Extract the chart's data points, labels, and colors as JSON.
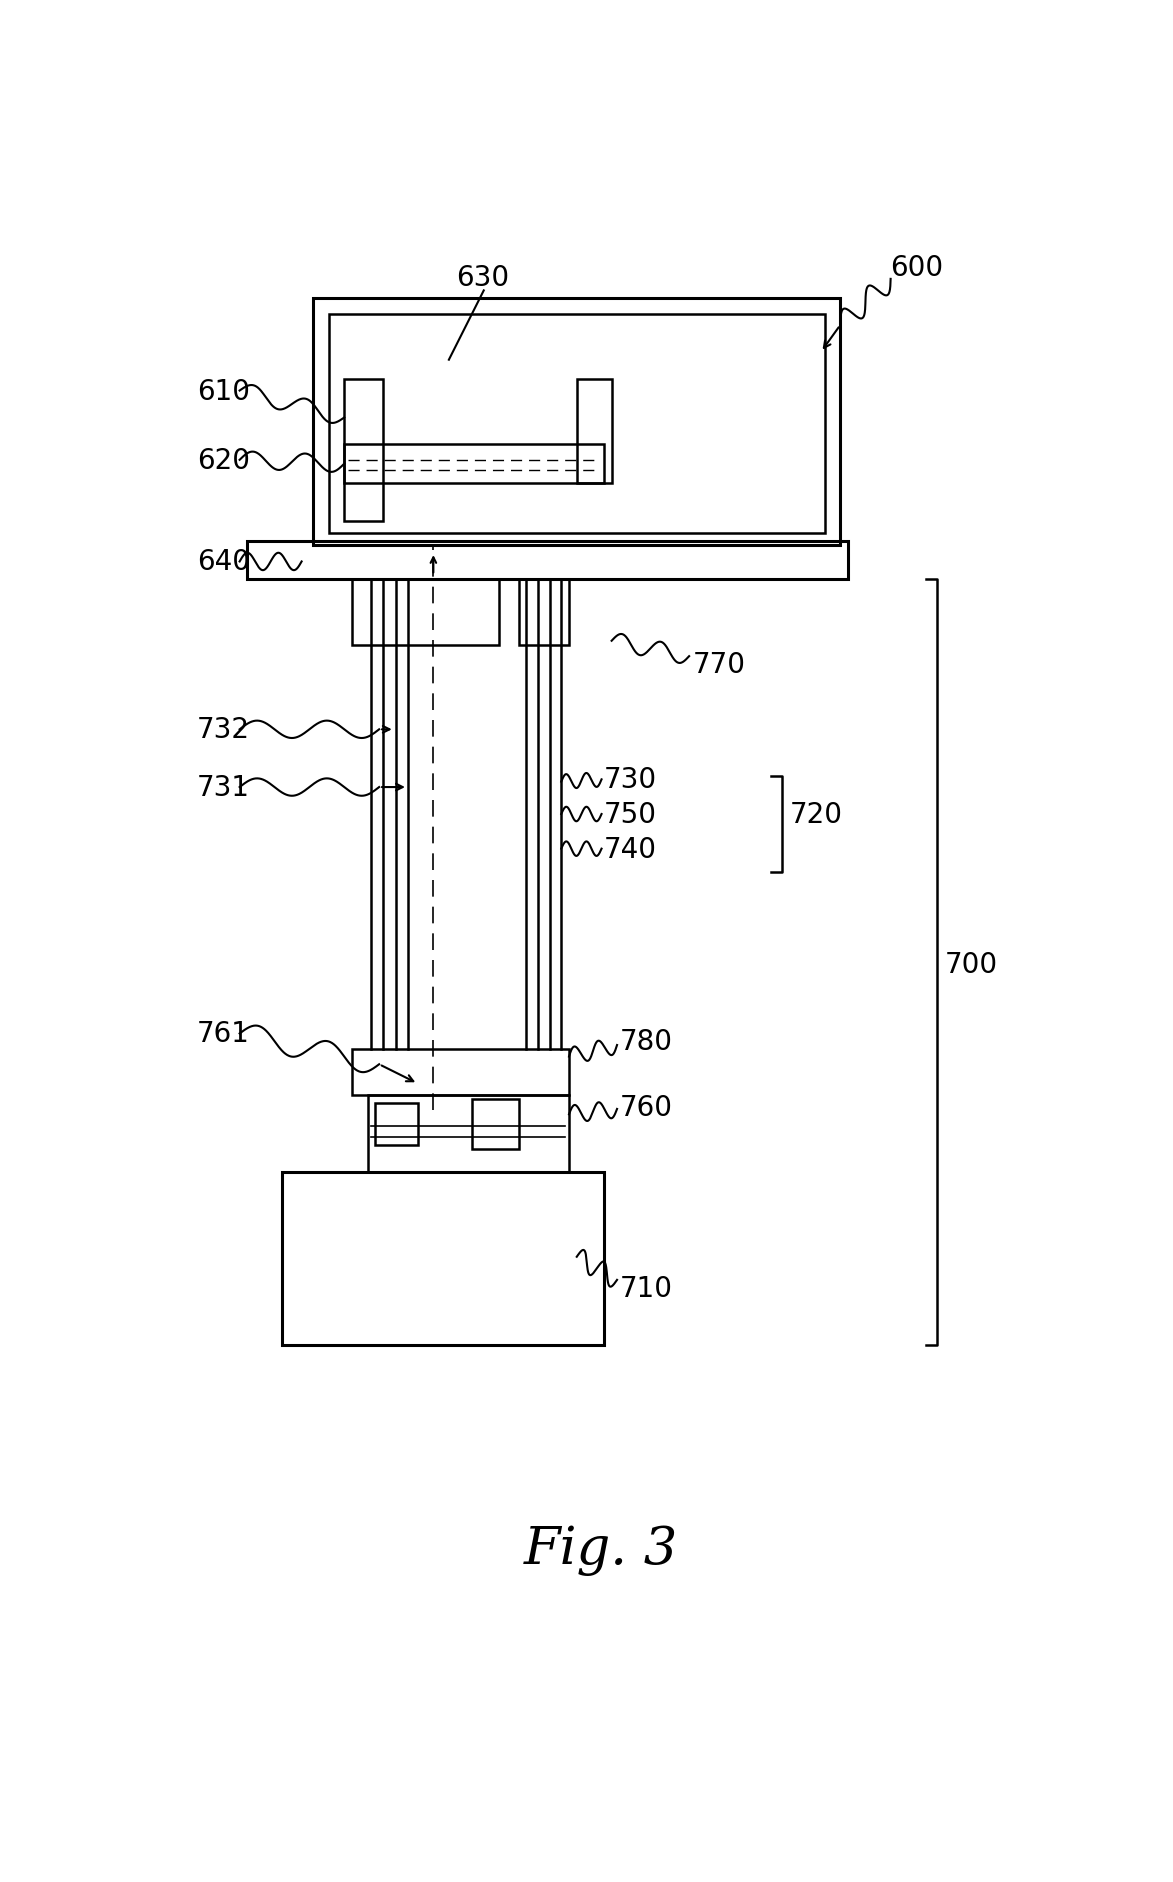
{
  "fig_width": 11.73,
  "fig_height": 18.83,
  "bg_color": "#ffffff",
  "line_color": "#000000",
  "lw": 1.8,
  "lw_thick": 2.2,
  "label_fs": 20,
  "fig3_fs": 38
}
